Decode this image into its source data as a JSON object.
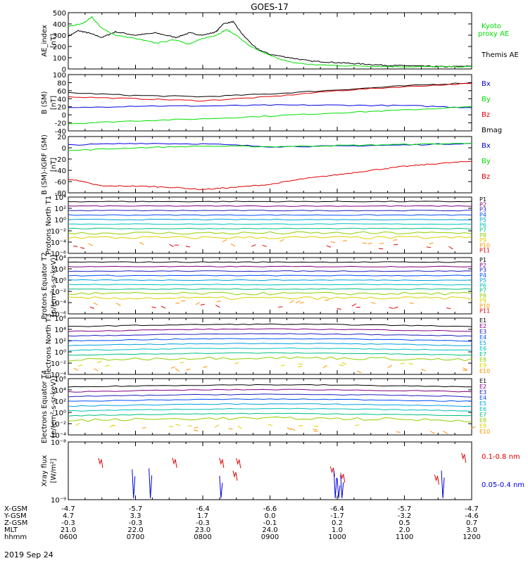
{
  "title": "GOES-17",
  "date_label": "2019 Sep 24",
  "colors": {
    "black": "#000000",
    "red": "#e00000",
    "green": "#00e000",
    "blue": "#0000e0",
    "cyan": "#00c8e0"
  },
  "chart_data": [
    {
      "type": "line",
      "panel": "ae",
      "ylabel": "AE_index [nT]",
      "ylim": [
        0,
        500
      ],
      "yticks": [
        "0",
        "100",
        "200",
        "300",
        "400",
        "500"
      ],
      "legend_placement": "right",
      "legend": [
        {
          "name": "Kyoto proxy AE",
          "color": "#00e000"
        },
        {
          "name": "Themis AE",
          "color": "#000000"
        }
      ],
      "series": [
        {
          "name": "Themis AE",
          "color": "#000000",
          "x": [
            6.0,
            6.15,
            6.3,
            6.5,
            6.7,
            7.0,
            7.3,
            7.6,
            7.8,
            8.0,
            8.2,
            8.3,
            8.45,
            8.6,
            8.8,
            9.0,
            9.3,
            9.6,
            9.9,
            10.2,
            10.5,
            10.8,
            11.0,
            11.3,
            11.6,
            12.0
          ],
          "y": [
            290,
            340,
            320,
            280,
            330,
            300,
            320,
            280,
            320,
            300,
            330,
            400,
            420,
            300,
            180,
            130,
            100,
            70,
            60,
            50,
            40,
            30,
            30,
            25,
            20,
            25
          ]
        },
        {
          "name": "Kyoto proxy AE",
          "color": "#00e000",
          "x": [
            6.0,
            6.2,
            6.35,
            6.5,
            6.7,
            7.0,
            7.3,
            7.6,
            7.8,
            8.0,
            8.2,
            8.35,
            8.5,
            8.7,
            9.0,
            9.3,
            9.6,
            10.0,
            10.5,
            11.0,
            11.5,
            12.0
          ],
          "y": [
            380,
            400,
            460,
            360,
            300,
            270,
            230,
            260,
            220,
            270,
            300,
            350,
            300,
            200,
            120,
            60,
            40,
            30,
            25,
            20,
            20,
            20
          ]
        }
      ]
    },
    {
      "type": "line",
      "panel": "b_sm",
      "ylabel": "B (SM) [nT]",
      "ylim": [
        -40,
        100
      ],
      "yticks": [
        "-40",
        "-20",
        "0",
        "20",
        "40",
        "60",
        "80",
        "100"
      ],
      "legend": [
        {
          "name": "Bx",
          "color": "#0000e0"
        },
        {
          "name": "By",
          "color": "#00e000"
        },
        {
          "name": "Bz",
          "color": "#e00000"
        },
        {
          "name": "Bmag",
          "color": "#000000"
        }
      ],
      "series": [
        {
          "name": "Bmag",
          "color": "#000000",
          "x": [
            6,
            7,
            8,
            9,
            10,
            11,
            12
          ],
          "y": [
            55,
            48,
            45,
            52,
            62,
            72,
            80
          ]
        },
        {
          "name": "Bz",
          "color": "#e00000",
          "x": [
            6,
            7,
            8,
            9,
            10,
            11,
            12
          ],
          "y": [
            45,
            40,
            35,
            45,
            60,
            70,
            78
          ]
        },
        {
          "name": "Bx",
          "color": "#0000e0",
          "x": [
            6,
            7,
            8,
            9,
            10,
            11,
            12
          ],
          "y": [
            17,
            22,
            22,
            24,
            24,
            23,
            18
          ]
        },
        {
          "name": "By",
          "color": "#00e000",
          "x": [
            6,
            7,
            8,
            9,
            10,
            11,
            12
          ],
          "y": [
            -22,
            -15,
            -10,
            -3,
            5,
            12,
            20
          ]
        }
      ]
    },
    {
      "type": "line",
      "panel": "b_igrf",
      "ylabel": "B (SM)-IGRF (SM) [nT]",
      "ylim": [
        -80,
        20
      ],
      "yticks": [
        "-80",
        "-60",
        "-40",
        "-20",
        "0",
        "20"
      ],
      "legend": [
        {
          "name": "Bx",
          "color": "#0000e0"
        },
        {
          "name": "By",
          "color": "#00e000"
        },
        {
          "name": "Bz",
          "color": "#e00000"
        }
      ],
      "series": [
        {
          "name": "Bx",
          "color": "#0000e0",
          "x": [
            6,
            7,
            8,
            9,
            10,
            11,
            12
          ],
          "y": [
            5,
            8,
            7,
            2,
            3,
            5,
            8
          ]
        },
        {
          "name": "By",
          "color": "#00e000",
          "x": [
            6,
            7,
            8,
            9,
            10,
            11,
            12
          ],
          "y": [
            -5,
            0,
            3,
            2,
            4,
            6,
            8
          ]
        },
        {
          "name": "Bz",
          "color": "#e00000",
          "x": [
            6,
            6.5,
            7,
            7.5,
            8,
            8.5,
            9,
            9.5,
            10,
            10.5,
            11,
            11.5,
            12
          ],
          "y": [
            -55,
            -68,
            -68,
            -70,
            -74,
            -70,
            -65,
            -55,
            -48,
            -40,
            -33,
            -28,
            -24
          ]
        }
      ]
    },
    {
      "type": "line",
      "panel": "protons_t1",
      "ylabel": "Protons North T1",
      "yscale": "log",
      "ylim": [
        1e-06,
        10000.0
      ],
      "yticks": [
        "10⁻⁶",
        "10⁻⁴",
        "10⁻²",
        "10⁰",
        "10²",
        "10⁴"
      ],
      "legend": [
        "P1",
        "P2",
        "P3",
        "P4",
        "P5",
        "P6",
        "P7",
        "P8",
        "P9",
        "P10",
        "P11"
      ]
    },
    {
      "type": "line",
      "panel": "protons_t2",
      "ylabel": "Protons Equator T2 [p/(cm²-s-sr-keV)]",
      "yscale": "log",
      "ylim": [
        1e-06,
        10000.0
      ],
      "yticks": [
        "10⁻⁶",
        "10⁻⁴",
        "10⁻²",
        "10⁰",
        "10²",
        "10⁴"
      ],
      "legend": [
        "P1",
        "P2",
        "P3",
        "P4",
        "P5",
        "P6",
        "P7",
        "P8",
        "P9",
        "P10",
        "P11"
      ]
    },
    {
      "type": "line",
      "panel": "electrons_t3",
      "ylabel": "Electrons North T3",
      "yscale": "log",
      "ylim": [
        0.0001,
        1000000.0
      ],
      "yticks": [
        "10⁻⁴",
        "10⁻²",
        "10⁰",
        "10²",
        "10⁴",
        "10⁶"
      ],
      "legend": [
        "E1",
        "E2",
        "E3",
        "E4",
        "E5",
        "E6",
        "E7",
        "E8",
        "E9",
        "E10"
      ]
    },
    {
      "type": "line",
      "panel": "electrons_t4",
      "ylabel": "Electrons Equator T4 [e/(cm²-s-sr-keV)]",
      "yscale": "log",
      "ylim": [
        0.0001,
        1000000.0
      ],
      "yticks": [
        "10⁻⁴",
        "10⁻²",
        "10⁰",
        "10²",
        "10⁴",
        "10⁶"
      ],
      "legend": [
        "E1",
        "E2",
        "E3",
        "E4",
        "E5",
        "E6",
        "E7",
        "E8",
        "E9",
        "E10"
      ]
    },
    {
      "type": "line",
      "panel": "xray",
      "ylabel": "Xray flux [W/m²]",
      "yscale": "log",
      "ylim": [
        1e-09,
        1e-08
      ],
      "yticks": [
        "10⁻⁹",
        "10⁻⁸"
      ],
      "legend": [
        {
          "name": "0.1-0.8 nm",
          "color": "#e00000"
        },
        {
          "name": "0.05-0.4 nm",
          "color": "#0000e0"
        }
      ]
    }
  ],
  "x_axis": {
    "ticks": [
      "0600",
      "0700",
      "0800",
      "0900",
      "1000",
      "1100",
      "1200"
    ],
    "rows": [
      {
        "label": "X-GSM",
        "values": [
          "-4.7",
          "-5.7",
          "-6.4",
          "-6.6",
          "-6.4",
          "-5.7",
          "-4.7"
        ]
      },
      {
        "label": "Y-GSM",
        "values": [
          "4.7",
          "3.3",
          "1.7",
          "0.0",
          "-1.7",
          "-3.2",
          "-4.6"
        ]
      },
      {
        "label": "Z-GSM",
        "values": [
          "-0.3",
          "-0.3",
          "-0.3",
          "-0.1",
          "0.2",
          "0.5",
          "0.7"
        ]
      },
      {
        "label": "MLT",
        "values": [
          "21.0",
          "22.0",
          "23.0",
          "24.0",
          "1.0",
          "2.0",
          "3.0"
        ]
      },
      {
        "label": "hhmm",
        "values": [
          "0600",
          "0700",
          "0800",
          "0900",
          "1000",
          "1100",
          "1200"
        ]
      }
    ]
  }
}
